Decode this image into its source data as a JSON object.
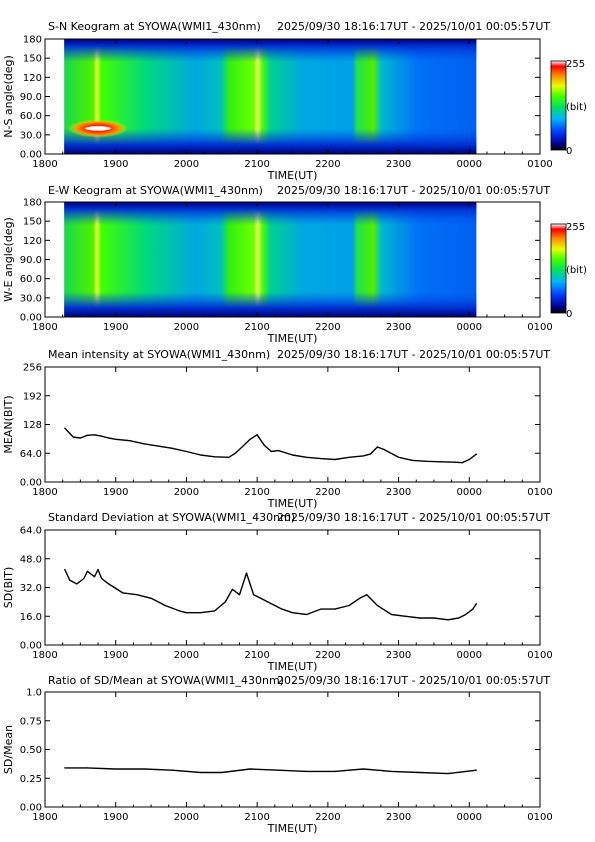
{
  "colors": {
    "axis": "#000000",
    "line": "#000000",
    "background": "#ffffff"
  },
  "colorbar": {
    "labels": [
      "255",
      "(bit)",
      "0"
    ]
  },
  "keograms": [
    {
      "title": "S-N Keogram at SYOWA(WMI1_430nm)",
      "time_range": "2025/09/30 18:16:17UT - 2025/10/01 00:05:57UT",
      "ylabel": "N-S angle(deg)"
    },
    {
      "title": "E-W Keogram at SYOWA(WMI1_430nm)",
      "time_range": "2025/09/30 18:16:17UT - 2025/10/01 00:05:57UT",
      "ylabel": "W-E angle(deg)"
    }
  ],
  "chart_data": [
    {
      "type": "heatmap",
      "title": "S-N Keogram at SYOWA(WMI1_430nm)",
      "subtitle": "2025/09/30 18:16:17UT - 2025/10/01 00:05:57UT",
      "xlabel": "TIME(UT)",
      "ylabel": "N-S angle(deg)",
      "x_ticks": [
        "1800",
        "1900",
        "2000",
        "2100",
        "2200",
        "2300",
        "0000",
        "0100"
      ],
      "y_ticks": [
        "0.00",
        "30.0",
        "60.0",
        "90.0",
        "120",
        "150",
        "180"
      ],
      "ylim": [
        0,
        180
      ],
      "value_range": [
        0,
        255
      ],
      "value_unit": "(bit)",
      "data_start_ut": "18:16:17",
      "data_end_ut": "00:05:57",
      "bright_bands_ut": [
        "18:40-19:00",
        "20:35-21:10",
        "22:30-22:55"
      ],
      "hotspot": {
        "time": "18:45",
        "angle_deg": 40
      }
    },
    {
      "type": "heatmap",
      "title": "E-W Keogram at SYOWA(WMI1_430nm)",
      "subtitle": "2025/09/30 18:16:17UT - 2025/10/01 00:05:57UT",
      "xlabel": "TIME(UT)",
      "ylabel": "W-E angle(deg)",
      "x_ticks": [
        "1800",
        "1900",
        "2000",
        "2100",
        "2200",
        "2300",
        "0000",
        "0100"
      ],
      "y_ticks": [
        "0.00",
        "30.0",
        "60.0",
        "90.0",
        "120",
        "150",
        "180"
      ],
      "ylim": [
        0,
        180
      ],
      "value_range": [
        0,
        255
      ],
      "value_unit": "(bit)",
      "data_start_ut": "18:16:17",
      "data_end_ut": "00:05:57",
      "bright_bands_ut": [
        "18:40-19:00",
        "20:35-21:10",
        "22:30-22:55"
      ]
    },
    {
      "type": "line",
      "title": "Mean intensity at SYOWA(WMI1_430nm)",
      "subtitle": "2025/09/30 18:16:17UT - 2025/10/01 00:05:57UT",
      "xlabel": "TIME(UT)",
      "ylabel": "MEAN(BIT)",
      "x_ticks": [
        "1800",
        "1900",
        "2000",
        "2100",
        "2200",
        "2300",
        "0000",
        "0100"
      ],
      "y_ticks": [
        "0.00",
        "64.0",
        "128",
        "192",
        "256"
      ],
      "ylim": [
        0,
        256
      ],
      "x_hours": [
        18.28,
        18.4,
        18.5,
        18.6,
        18.7,
        18.8,
        18.9,
        19.0,
        19.2,
        19.4,
        19.6,
        19.8,
        20.0,
        20.2,
        20.4,
        20.6,
        20.7,
        20.8,
        20.9,
        21.0,
        21.1,
        21.2,
        21.3,
        21.5,
        21.7,
        21.9,
        22.1,
        22.3,
        22.5,
        22.6,
        22.7,
        22.8,
        23.0,
        23.2,
        23.4,
        23.6,
        23.8,
        23.9,
        24.0,
        24.1
      ],
      "values": [
        120,
        100,
        98,
        104,
        105,
        102,
        98,
        95,
        92,
        85,
        80,
        75,
        68,
        60,
        56,
        55,
        65,
        80,
        95,
        105,
        82,
        68,
        70,
        60,
        55,
        52,
        50,
        55,
        58,
        62,
        78,
        72,
        55,
        48,
        46,
        45,
        44,
        43,
        50,
        62
      ]
    },
    {
      "type": "line",
      "title": "Standard Deviation at SYOWA(WMI1_430nm)",
      "subtitle": "2025/09/30 18:16:17UT - 2025/10/01 00:05:57UT",
      "xlabel": "TIME(UT)",
      "ylabel": "SD(BIT)",
      "x_ticks": [
        "1800",
        "1900",
        "2000",
        "2100",
        "2200",
        "2300",
        "0000",
        "0100"
      ],
      "y_ticks": [
        "0.00",
        "16.0",
        "32.0",
        "48.0",
        "64.0"
      ],
      "ylim": [
        0,
        64
      ],
      "x_hours": [
        18.28,
        18.35,
        18.45,
        18.55,
        18.6,
        18.7,
        18.75,
        18.8,
        18.9,
        19.1,
        19.3,
        19.5,
        19.7,
        19.9,
        20.0,
        20.2,
        20.4,
        20.55,
        20.65,
        20.75,
        20.85,
        20.95,
        21.05,
        21.15,
        21.25,
        21.35,
        21.5,
        21.7,
        21.9,
        22.1,
        22.3,
        22.45,
        22.55,
        22.7,
        22.9,
        23.1,
        23.3,
        23.5,
        23.7,
        23.85,
        23.95,
        24.05,
        24.1
      ],
      "values": [
        42,
        36,
        34,
        37,
        41,
        38,
        42,
        37,
        34,
        29,
        28,
        26,
        22,
        19,
        18,
        18,
        19,
        24,
        31,
        28,
        40,
        28,
        26,
        24,
        22,
        20,
        18,
        17,
        20,
        20,
        22,
        26,
        28,
        22,
        17,
        16,
        15,
        15,
        14,
        15,
        17,
        20,
        23
      ]
    },
    {
      "type": "line",
      "title": "Ratio of SD/Mean at SYOWA(WMI1_430nm)",
      "subtitle": "2025/09/30 18:16:17UT - 2025/10/01 00:05:57UT",
      "xlabel": "TIME(UT)",
      "ylabel": "SD/Mean",
      "x_ticks": [
        "1800",
        "1900",
        "2000",
        "2100",
        "2200",
        "2300",
        "0000",
        "0100"
      ],
      "y_ticks": [
        "0.00",
        "0.25",
        "0.50",
        "0.75",
        "1.0"
      ],
      "ylim": [
        0,
        1
      ],
      "x_hours": [
        18.28,
        18.6,
        19.0,
        19.4,
        19.8,
        20.2,
        20.5,
        20.9,
        21.3,
        21.7,
        22.1,
        22.5,
        22.9,
        23.3,
        23.7,
        24.1
      ],
      "values": [
        0.34,
        0.34,
        0.33,
        0.33,
        0.32,
        0.3,
        0.3,
        0.33,
        0.32,
        0.31,
        0.31,
        0.33,
        0.31,
        0.3,
        0.29,
        0.32
      ]
    }
  ]
}
